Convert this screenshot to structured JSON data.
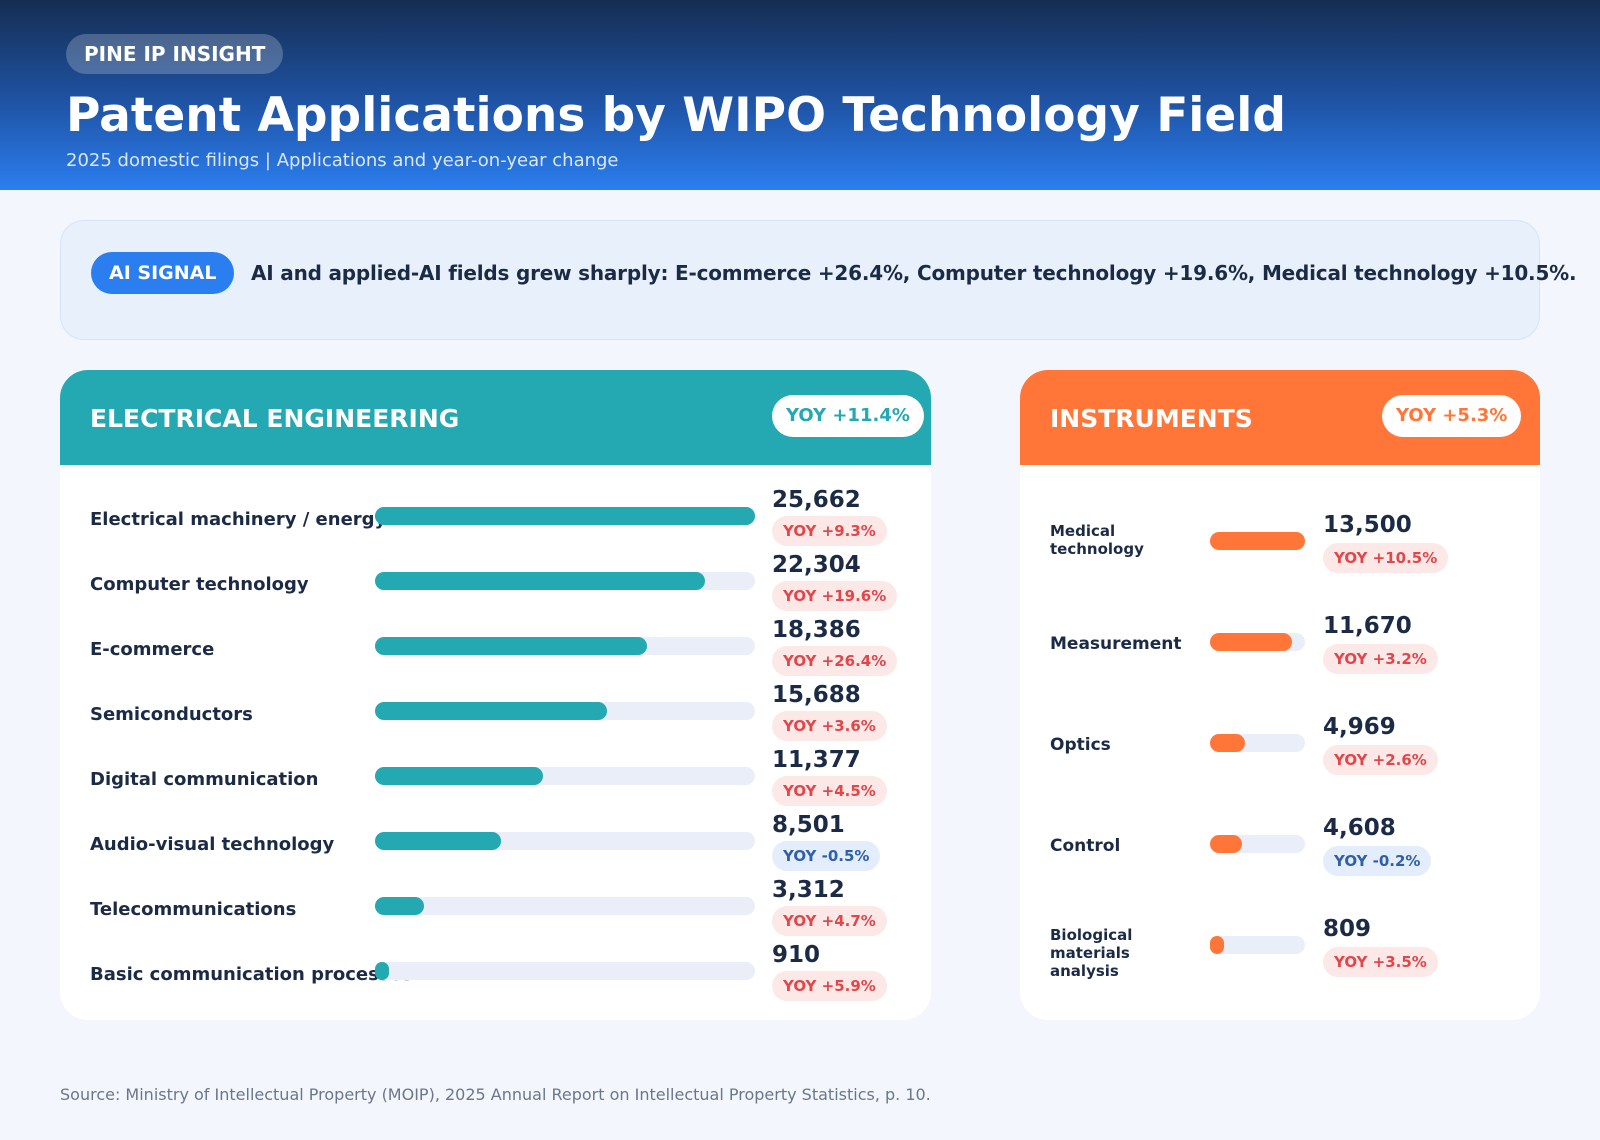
{
  "header": {
    "brand": "PINE IP INSIGHT",
    "title": "Patent Applications by WIPO Technology Field",
    "subtitle": "2025 domestic filings | Applications and year-on-year change"
  },
  "signal": {
    "badge": "AI SIGNAL",
    "text": "AI and applied-AI fields grew sharply: E-commerce +26.4%, Computer technology +19.6%, Medical technology +10.5%."
  },
  "colors": {
    "electrical": "#24a8b1",
    "instruments": "#ff7638",
    "increase": "#e1474a",
    "decrease": "#2f5fa8"
  },
  "chart_data": [
    {
      "type": "bar",
      "title": "ELECTRICAL ENGINEERING",
      "badge": "YOY +11.4%",
      "xlim": [
        0,
        25662
      ],
      "categories": [
        "Electrical machinery / energy",
        "Computer technology",
        "E-commerce",
        "Semiconductors",
        "Digital communication",
        "Audio-visual technology",
        "Telecommunications",
        "Basic communication processes"
      ],
      "values": [
        25662,
        22304,
        18386,
        15688,
        11377,
        8501,
        3312,
        910
      ],
      "value_labels": [
        "25,662",
        "22,304",
        "18,386",
        "15,688",
        "11,377",
        "8,501",
        "3,312",
        "910"
      ],
      "yoy_labels": [
        "YOY +9.3%",
        "YOY +19.6%",
        "YOY +26.4%",
        "YOY +3.6%",
        "YOY +4.5%",
        "YOY -0.5%",
        "YOY +4.7%",
        "YOY +5.9%"
      ],
      "yoy": [
        9.3,
        19.6,
        26.4,
        3.6,
        4.5,
        -0.5,
        4.7,
        5.9
      ]
    },
    {
      "type": "bar",
      "title": "INSTRUMENTS",
      "badge": "YOY +5.3%",
      "xlim": [
        0,
        13500
      ],
      "categories": [
        "Medical technology",
        "Measurement",
        "Optics",
        "Control",
        "Biological materials analysis"
      ],
      "values": [
        13500,
        11670,
        4969,
        4608,
        809
      ],
      "value_labels": [
        "13,500",
        "11,670",
        "4,969",
        "4,608",
        "809"
      ],
      "yoy_labels": [
        "YOY +10.5%",
        "YOY +3.2%",
        "YOY +2.6%",
        "YOY -0.2%",
        "YOY +3.5%"
      ],
      "yoy": [
        10.5,
        3.2,
        2.6,
        -0.2,
        3.5
      ]
    }
  ],
  "source": "Source: Ministry of Intellectual Property (MOIP), 2025 Annual Report on Intellectual Property Statistics, p. 10."
}
